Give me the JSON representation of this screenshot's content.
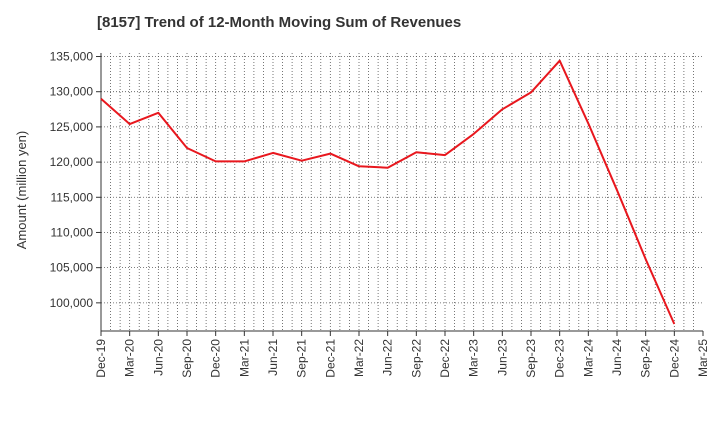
{
  "chart_data": {
    "type": "line",
    "title": "[8157]  Trend of 12-Month Moving Sum of Revenues",
    "ylabel": "Amount (million yen)",
    "xlabel": "",
    "ylim": [
      96000,
      135500
    ],
    "yticks": [
      100000,
      105000,
      110000,
      115000,
      120000,
      125000,
      130000,
      135000
    ],
    "ytick_labels": [
      "100,000",
      "105,000",
      "110,000",
      "115,000",
      "120,000",
      "125,000",
      "130,000",
      "135,000"
    ],
    "categories": [
      "Dec-19",
      "Mar-20",
      "Jun-20",
      "Sep-20",
      "Dec-20",
      "Mar-21",
      "Jun-21",
      "Sep-21",
      "Dec-21",
      "Mar-22",
      "Jun-22",
      "Sep-22",
      "Dec-22",
      "Mar-23",
      "Jun-23",
      "Sep-23",
      "Dec-23",
      "Mar-24",
      "Jun-24",
      "Sep-24",
      "Dec-24",
      "Mar-25"
    ],
    "grid": true,
    "series": [
      {
        "color": "#e8171e",
        "values": [
          129000,
          125400,
          127000,
          122000,
          120100,
          120100,
          121300,
          120200,
          121200,
          119400,
          119200,
          121400,
          121000,
          124000,
          127500,
          129900,
          134400,
          125500,
          116000,
          106200,
          97000,
          null
        ]
      }
    ]
  }
}
